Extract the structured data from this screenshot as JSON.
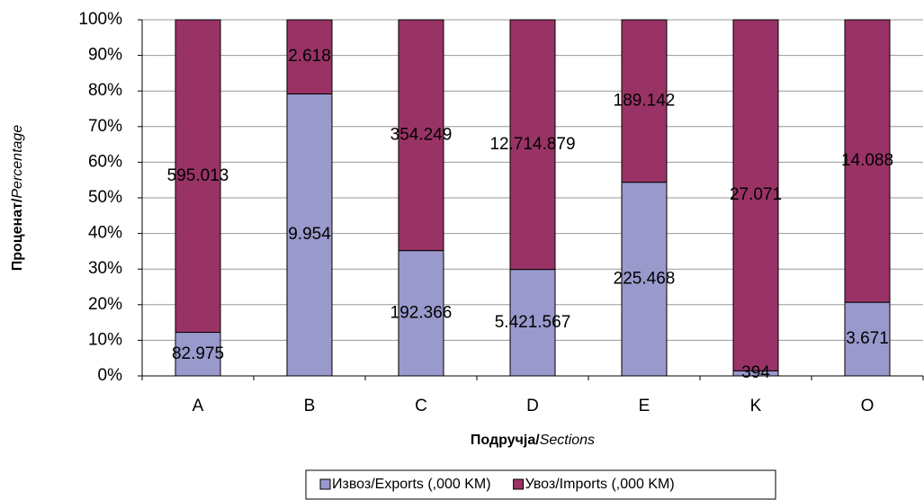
{
  "chart_data": {
    "type": "bar",
    "stacked": "percent",
    "y_label": {
      "bold": "Проценат/",
      "italic": "Percentage"
    },
    "x_label": {
      "bold": "Подручја/",
      "italic": "Sections"
    },
    "categories": [
      "A",
      "B",
      "C",
      "D",
      "E",
      "K",
      "O"
    ],
    "series": [
      {
        "name": "Извоз/Exports (,000 KM)",
        "color": "#9999cc",
        "values": [
          82975,
          9954,
          192366,
          5421567,
          225468,
          394,
          3671
        ],
        "value_labels": [
          "82.975",
          "9.954",
          "192.366",
          "5.421.567",
          "225.468",
          "394",
          "3.671"
        ]
      },
      {
        "name": "Увоз/Imports (,000 KM)",
        "color": "#993366",
        "values": [
          595013,
          2618,
          354249,
          12714879,
          189142,
          27071,
          14088
        ],
        "value_labels": [
          "595.013",
          "2.618",
          "354.249",
          "12.714.879",
          "189.142",
          "27.071",
          "14.088"
        ]
      }
    ],
    "ylim": [
      0,
      100
    ],
    "yticks": [
      {
        "value": 0,
        "label": "0%"
      },
      {
        "value": 10,
        "label": "10%"
      },
      {
        "value": 20,
        "label": "20%"
      },
      {
        "value": 30,
        "label": "30%"
      },
      {
        "value": 40,
        "label": "40%"
      },
      {
        "value": 50,
        "label": "50%"
      },
      {
        "value": 60,
        "label": "60%"
      },
      {
        "value": 70,
        "label": "70%"
      },
      {
        "value": 80,
        "label": "80%"
      },
      {
        "value": 90,
        "label": "90%"
      },
      {
        "value": 100,
        "label": "100%"
      }
    ],
    "grid": true
  }
}
